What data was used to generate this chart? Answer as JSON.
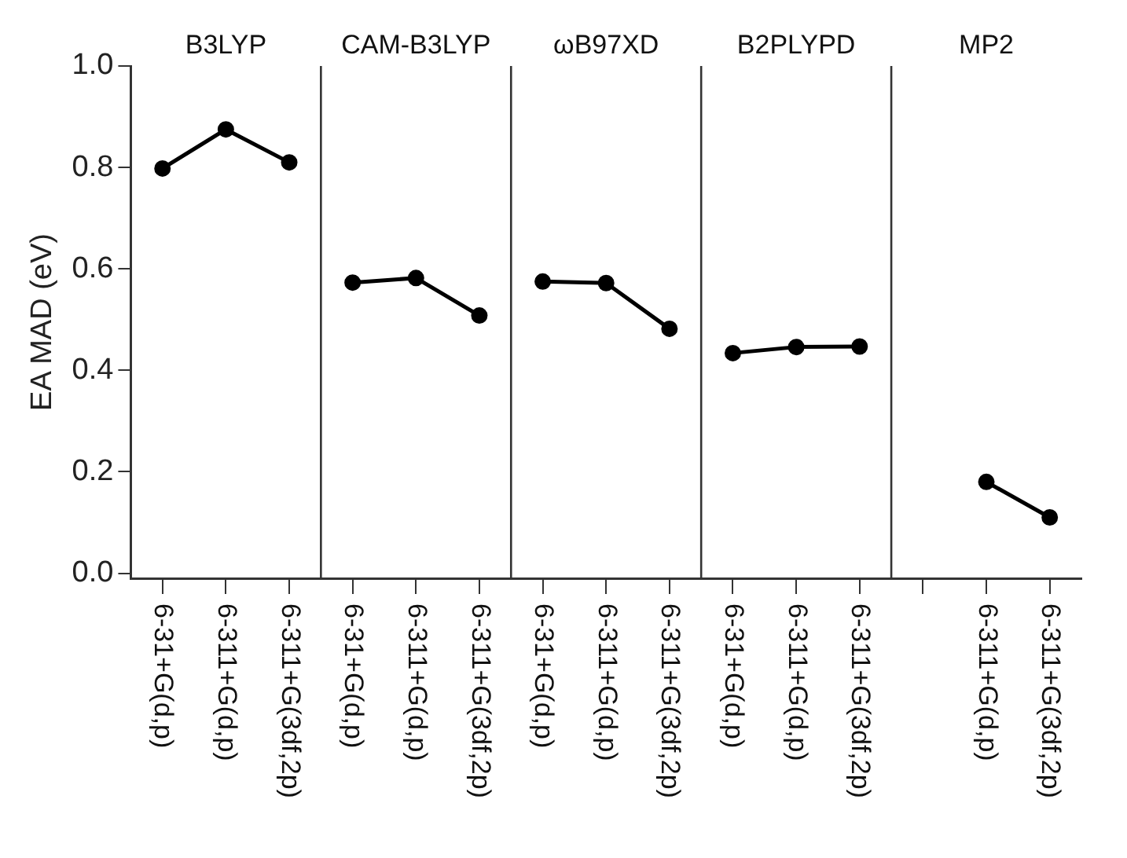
{
  "chart_data": {
    "type": "line",
    "ylabel": "EA MAD (eV)",
    "categories": [
      "6-31+G(d,p)",
      "6-311+G(d,p)",
      "6-311+G(3df,2p)",
      "6-31+G(d,p)",
      "6-311+G(d,p)",
      "6-311+G(3df,2p)",
      "6-31+G(d,p)",
      "6-311+G(d,p)",
      "6-311+G(3df,2p)",
      "6-31+G(d,p)",
      "6-311+G(d,p)",
      "6-311+G(3df,2p)",
      null,
      "6-311+G(d,p)",
      "6-311+G(3df,2p)"
    ],
    "series": [
      {
        "color": "#000000",
        "values": [
          0.798,
          0.875,
          0.81,
          null,
          null,
          null,
          null,
          null,
          null,
          null,
          null,
          null,
          null,
          null,
          null
        ]
      },
      {
        "color": "#000000",
        "values": [
          null,
          null,
          null,
          0.573,
          0.582,
          0.508,
          null,
          null,
          null,
          null,
          null,
          null,
          null,
          null,
          null
        ]
      },
      {
        "color": "#000000",
        "values": [
          null,
          null,
          null,
          null,
          null,
          null,
          0.575,
          0.572,
          0.482,
          null,
          null,
          null,
          null,
          null,
          null
        ]
      },
      {
        "color": "#000000",
        "values": [
          null,
          null,
          null,
          null,
          null,
          null,
          null,
          null,
          null,
          0.434,
          0.446,
          0.447,
          null,
          null,
          null
        ]
      },
      {
        "color": "#000000",
        "values": [
          null,
          null,
          null,
          null,
          null,
          null,
          null,
          null,
          null,
          null,
          null,
          null,
          null,
          0.18,
          0.11
        ]
      }
    ],
    "annotations": [
      "B3LYP",
      "CAM-B3LYP",
      "ωB97XD",
      "B2PLYPD",
      "MP2"
    ],
    "ylim": [
      -0.01,
      1.0
    ],
    "yticks": [
      {
        "value": 0,
        "label": "0.0"
      },
      0.2,
      0.4,
      0.6,
      0.8,
      {
        "value": 1,
        "label": "1.0"
      }
    ],
    "grid": false,
    "legend": false,
    "marker": "circle",
    "line_style": "solid"
  }
}
